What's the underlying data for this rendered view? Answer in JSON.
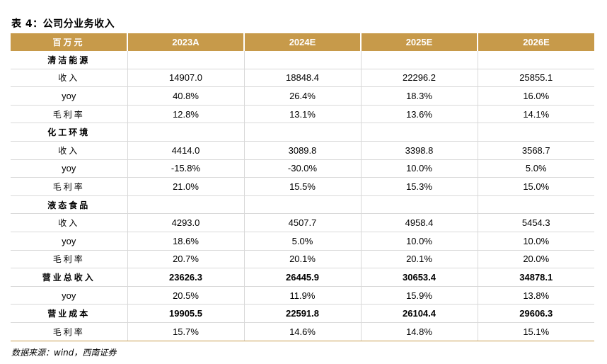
{
  "title": "表 4：公司分业务收入",
  "header": {
    "unit": "百万元",
    "years": [
      "2023A",
      "2024E",
      "2025E",
      "2026E"
    ]
  },
  "rows": [
    {
      "label": "清洁能源",
      "type": "section",
      "values": [
        "",
        "",
        "",
        ""
      ]
    },
    {
      "label": "收入",
      "type": "item",
      "values": [
        "14907.0",
        "18848.4",
        "22296.2",
        "25855.1"
      ]
    },
    {
      "label": "yoy",
      "type": "item-en",
      "values": [
        "40.8%",
        "26.4%",
        "18.3%",
        "16.0%"
      ]
    },
    {
      "label": "毛利率",
      "type": "item",
      "values": [
        "12.8%",
        "13.1%",
        "13.6%",
        "14.1%"
      ]
    },
    {
      "label": "化工环境",
      "type": "section",
      "values": [
        "",
        "",
        "",
        ""
      ]
    },
    {
      "label": "收入",
      "type": "item",
      "values": [
        "4414.0",
        "3089.8",
        "3398.8",
        "3568.7"
      ]
    },
    {
      "label": "yoy",
      "type": "item-en",
      "values": [
        "-15.8%",
        "-30.0%",
        "10.0%",
        "5.0%"
      ]
    },
    {
      "label": "毛利率",
      "type": "item",
      "values": [
        "21.0%",
        "15.5%",
        "15.3%",
        "15.0%"
      ]
    },
    {
      "label": "液态食品",
      "type": "section",
      "values": [
        "",
        "",
        "",
        ""
      ]
    },
    {
      "label": "收入",
      "type": "item",
      "values": [
        "4293.0",
        "4507.7",
        "4958.4",
        "5454.3"
      ]
    },
    {
      "label": "yoy",
      "type": "item-en",
      "values": [
        "18.6%",
        "5.0%",
        "10.0%",
        "10.0%"
      ]
    },
    {
      "label": "毛利率",
      "type": "item",
      "values": [
        "20.7%",
        "20.1%",
        "20.1%",
        "20.0%"
      ]
    },
    {
      "label": "营业总收入",
      "type": "total",
      "values": [
        "23626.3",
        "26445.9",
        "30653.4",
        "34878.1"
      ]
    },
    {
      "label": "yoy",
      "type": "item-en",
      "values": [
        "20.5%",
        "11.9%",
        "15.9%",
        "13.8%"
      ]
    },
    {
      "label": "营业成本",
      "type": "total",
      "values": [
        "19905.5",
        "22591.8",
        "26104.4",
        "29606.3"
      ]
    },
    {
      "label": "毛利率",
      "type": "item",
      "values": [
        "15.7%",
        "14.6%",
        "14.8%",
        "15.1%"
      ]
    }
  ],
  "source": "数据来源：wind，西南证券"
}
